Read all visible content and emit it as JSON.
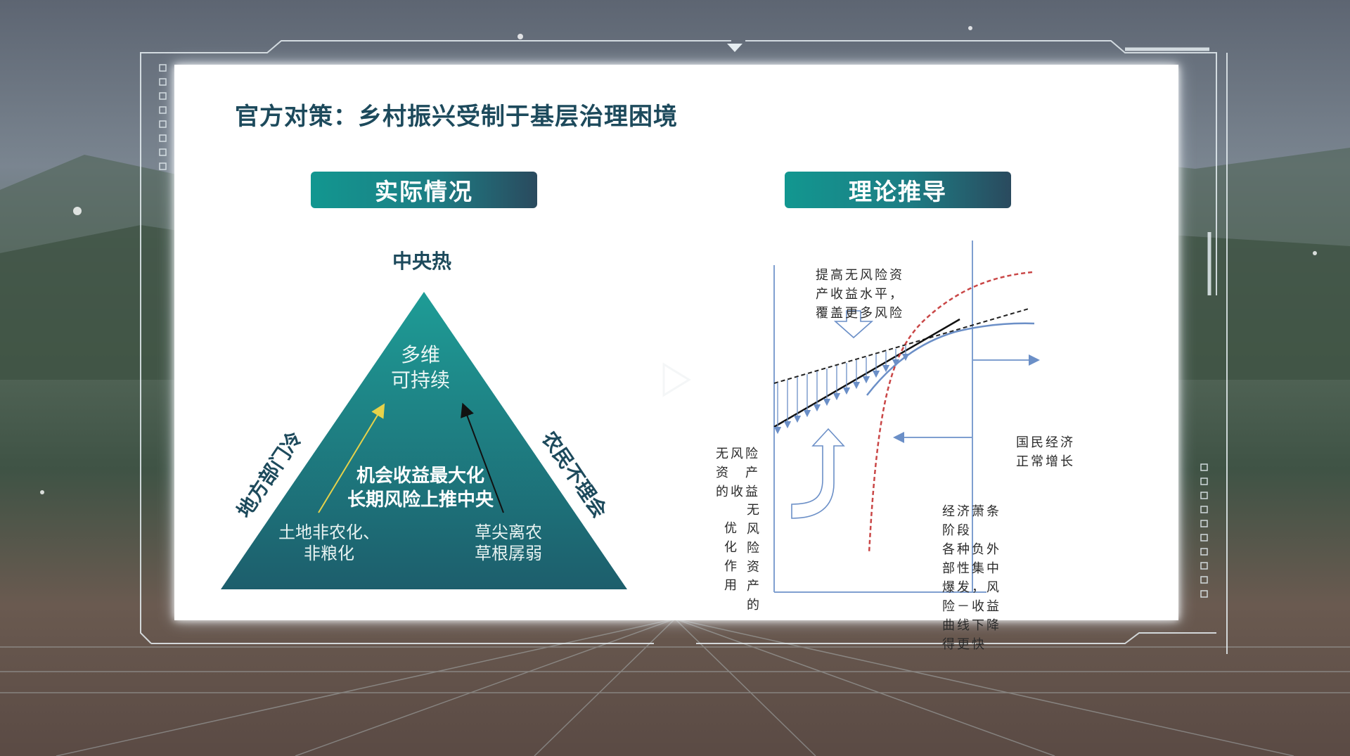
{
  "slide": {
    "title": "官方对策：乡村振兴受制于基层治理困境",
    "left_panel": {
      "header": "实际情况",
      "top_label": "中央热",
      "center_top": [
        "多维",
        "可持续"
      ],
      "center_main": [
        "机会收益最大化",
        "长期风险上推中央"
      ],
      "left_bottom": [
        "土地非农化、",
        "非粮化"
      ],
      "right_bottom": [
        "草尖离农",
        "草根孱弱"
      ],
      "left_side": "地方部门冷",
      "right_side": "农民不理会"
    },
    "right_panel": {
      "header": "理论推导",
      "note_raise": [
        "提高无风险资",
        "产收益水平，",
        "覆盖更多风险"
      ],
      "risk_free_return": [
        "无风险",
        "资　产",
        "的收益"
      ],
      "optimization_col1": "优化作用",
      "optimization_col2": "无风险资产的",
      "normal_growth": [
        "国民经济",
        "正常增长"
      ],
      "depression": [
        "经济萧条",
        "阶段",
        "各种负外",
        "部性集中",
        "爆发，风",
        "险－收益",
        "曲线下降",
        "得更快"
      ]
    }
  },
  "colors": {
    "teal": "#129790",
    "navy_title": "#1d4a5c",
    "triangle_top": "#1e9c96",
    "triangle_bottom": "#1d5e6c",
    "curve_blue": "#6b8fc7",
    "curve_red": "#c94646"
  },
  "icons": {
    "play": "play-icon",
    "triangle": "triangle-shape"
  }
}
